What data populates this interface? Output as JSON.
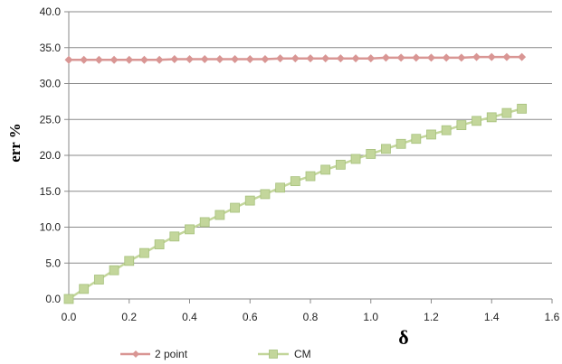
{
  "chart_data": {
    "type": "line",
    "xlabel": "δ",
    "ylabel": "err %",
    "xlim": [
      0,
      1.6
    ],
    "ylim": [
      0,
      40
    ],
    "x_ticks": [
      "0.0",
      "0.2",
      "0.4",
      "0.6",
      "0.8",
      "1.0",
      "1.2",
      "1.4",
      "1.6"
    ],
    "y_ticks": [
      "0.0",
      "5.0",
      "10.0",
      "15.0",
      "20.0",
      "25.0",
      "30.0",
      "35.0",
      "40.0"
    ],
    "grid": {
      "horizontal": true,
      "vertical": false
    },
    "legend": "bottom",
    "x": [
      0,
      0.05,
      0.1,
      0.15,
      0.2,
      0.25,
      0.3,
      0.35,
      0.4,
      0.45,
      0.5,
      0.55,
      0.6,
      0.65,
      0.7,
      0.75,
      0.8,
      0.85,
      0.9,
      0.95,
      1.0,
      1.05,
      1.1,
      1.15,
      1.2,
      1.25,
      1.3,
      1.35,
      1.4,
      1.45,
      1.5
    ],
    "series": [
      {
        "name": "2 point",
        "color": "#d99694",
        "marker": "diamond",
        "values": [
          33.3,
          33.3,
          33.3,
          33.3,
          33.3,
          33.3,
          33.3,
          33.4,
          33.4,
          33.4,
          33.4,
          33.4,
          33.4,
          33.4,
          33.5,
          33.5,
          33.5,
          33.5,
          33.5,
          33.5,
          33.5,
          33.6,
          33.6,
          33.6,
          33.6,
          33.6,
          33.6,
          33.7,
          33.7,
          33.7,
          33.7
        ]
      },
      {
        "name": "CM",
        "color": "#c3d69b",
        "marker": "square",
        "values": [
          0.0,
          1.4,
          2.7,
          4.0,
          5.3,
          6.4,
          7.6,
          8.7,
          9.7,
          10.7,
          11.7,
          12.7,
          13.7,
          14.6,
          15.5,
          16.4,
          17.1,
          18.0,
          18.7,
          19.5,
          20.2,
          20.9,
          21.6,
          22.3,
          22.9,
          23.5,
          24.2,
          24.8,
          25.3,
          25.9,
          26.5
        ]
      }
    ]
  }
}
